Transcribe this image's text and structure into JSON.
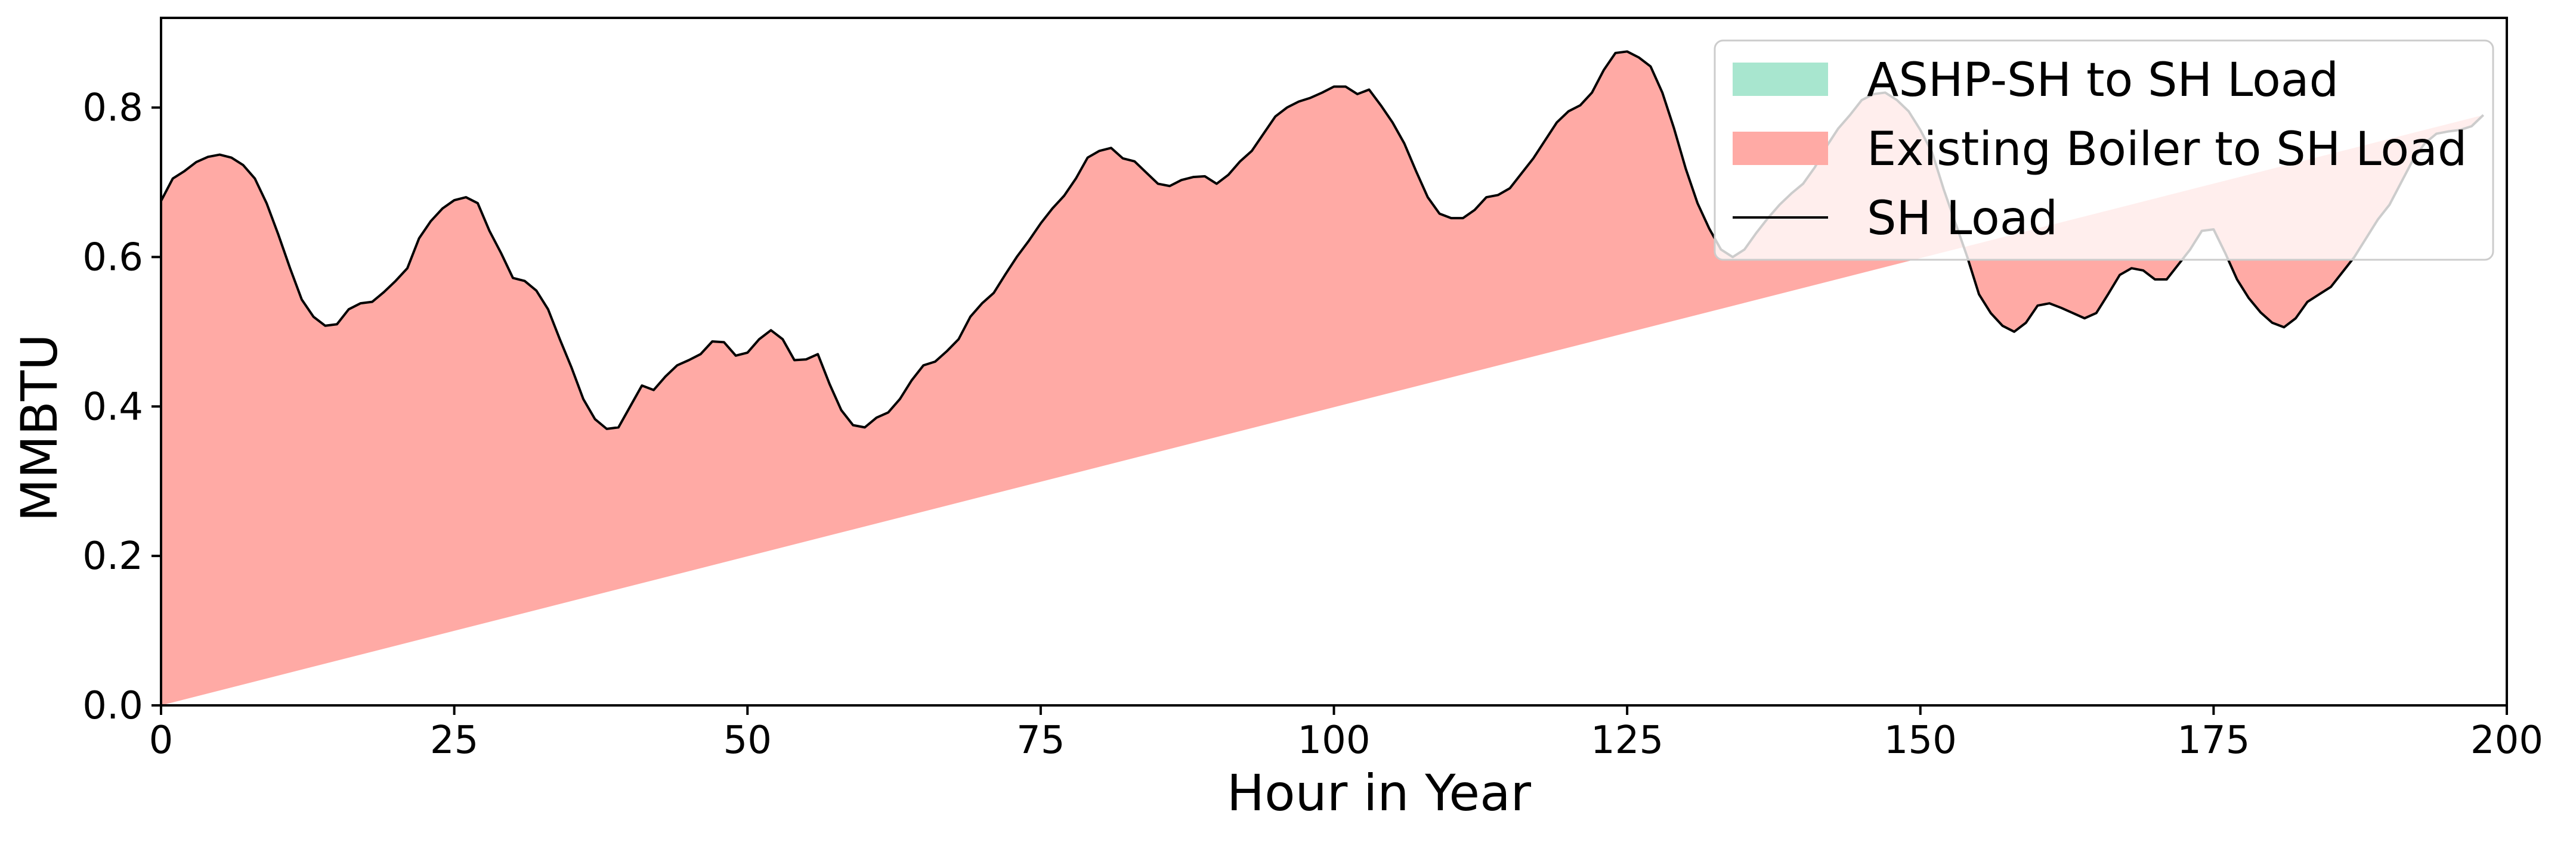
{
  "chart_data": {
    "type": "area",
    "title": "",
    "xlabel": "Hour in Year",
    "ylabel": "MMBTU",
    "xlim": [
      0,
      200
    ],
    "ylim": [
      0,
      0.92
    ],
    "xticks": [
      0,
      25,
      50,
      75,
      100,
      125,
      150,
      175,
      200
    ],
    "xtick_labels": [
      "0",
      "25",
      "50",
      "75",
      "100",
      "125",
      "150",
      "175",
      "200"
    ],
    "yticks": [
      0.0,
      0.2,
      0.4,
      0.6,
      0.8
    ],
    "ytick_labels": [
      "0.0",
      "0.2",
      "0.4",
      "0.6",
      "0.8"
    ],
    "grid": false,
    "legend_position": "top-right",
    "series": [
      {
        "name": "ASHP-SH to SH Load",
        "kind": "stacked-area",
        "color": "#a8e6cf",
        "values": "zeros"
      },
      {
        "name": "Existing Boiler to SH Load",
        "kind": "stacked-area",
        "color": "#ffaaa5",
        "values": "same-as-SH-Load"
      },
      {
        "name": "SH Load",
        "kind": "line",
        "color": "#000000"
      }
    ],
    "x": [
      0,
      1,
      2,
      3,
      4,
      5,
      6,
      7,
      8,
      9,
      10,
      11,
      12,
      13,
      14,
      15,
      16,
      17,
      18,
      19,
      20,
      21,
      22,
      23,
      24,
      25,
      26,
      27,
      28,
      29,
      30,
      31,
      32,
      33,
      34,
      35,
      36,
      37,
      38,
      39,
      40,
      41,
      42,
      43,
      44,
      45,
      46,
      47,
      48,
      49,
      50,
      51,
      52,
      53,
      54,
      55,
      56,
      57,
      58,
      59,
      60,
      61,
      62,
      63,
      64,
      65,
      66,
      67,
      68,
      69,
      70,
      71,
      72,
      73,
      74,
      75,
      76,
      77,
      78,
      79,
      80,
      81,
      82,
      83,
      84,
      85,
      86,
      87,
      88,
      89,
      90,
      91,
      92,
      93,
      94,
      95,
      96,
      97,
      98,
      99,
      100,
      101,
      102,
      103,
      104,
      105,
      106,
      107,
      108,
      109,
      110,
      111,
      112,
      113,
      114,
      115,
      116,
      117,
      118,
      119,
      120,
      121,
      122,
      123,
      124,
      125,
      126,
      127,
      128,
      129,
      130,
      131,
      132,
      133,
      134,
      135,
      136,
      137,
      138,
      139,
      140,
      141,
      142,
      143,
      144,
      145,
      146,
      147,
      148,
      149,
      150,
      151,
      152,
      153,
      154,
      155,
      156,
      157,
      158,
      159,
      160,
      161,
      162,
      163,
      164,
      165,
      166,
      167,
      168,
      169,
      170,
      171,
      172,
      173,
      174,
      175,
      176,
      177,
      178,
      179,
      180,
      181,
      182,
      183,
      184,
      185,
      186,
      187,
      188,
      189,
      190,
      191,
      192,
      193,
      194,
      195,
      196,
      197,
      198,
      199
    ],
    "sh_load": [
      0.675,
      0.705,
      0.715,
      0.727,
      0.734,
      0.737,
      0.733,
      0.723,
      0.705,
      0.672,
      0.63,
      0.585,
      0.543,
      0.52,
      0.508,
      0.51,
      0.53,
      0.538,
      0.54,
      0.553,
      0.568,
      0.585,
      0.625,
      0.648,
      0.665,
      0.676,
      0.68,
      0.672,
      0.635,
      0.605,
      0.572,
      0.568,
      0.555,
      0.53,
      0.49,
      0.452,
      0.41,
      0.383,
      0.37,
      0.372,
      0.4,
      0.428,
      0.422,
      0.44,
      0.455,
      0.462,
      0.47,
      0.487,
      0.486,
      0.468,
      0.472,
      0.49,
      0.502,
      0.49,
      0.462,
      0.463,
      0.47,
      0.43,
      0.395,
      0.375,
      0.372,
      0.385,
      0.392,
      0.41,
      0.435,
      0.455,
      0.46,
      0.474,
      0.49,
      0.52,
      0.538,
      0.552,
      0.577,
      0.601,
      0.622,
      0.645,
      0.665,
      0.682,
      0.705,
      0.733,
      0.742,
      0.746,
      0.732,
      0.728,
      0.713,
      0.698,
      0.695,
      0.703,
      0.707,
      0.708,
      0.698,
      0.71,
      0.728,
      0.742,
      0.765,
      0.788,
      0.8,
      0.808,
      0.813,
      0.82,
      0.828,
      0.828,
      0.818,
      0.824,
      0.803,
      0.78,
      0.752,
      0.715,
      0.68,
      0.658,
      0.652,
      0.652,
      0.663,
      0.68,
      0.683,
      0.692,
      0.712,
      0.732,
      0.756,
      0.78,
      0.795,
      0.803,
      0.82,
      0.85,
      0.873,
      0.875,
      0.867,
      0.855,
      0.82,
      0.772,
      0.718,
      0.672,
      0.638,
      0.61,
      0.6,
      0.61,
      0.632,
      0.652,
      0.67,
      0.685,
      0.698,
      0.72,
      0.748,
      0.772,
      0.79,
      0.81,
      0.818,
      0.82,
      0.81,
      0.795,
      0.77,
      0.74,
      0.69,
      0.645,
      0.6,
      0.55,
      0.525,
      0.508,
      0.5,
      0.512,
      0.535,
      0.538,
      0.532,
      0.525,
      0.518,
      0.525,
      0.55,
      0.576,
      0.585,
      0.582,
      0.57,
      0.57,
      0.59,
      0.61,
      0.635,
      0.637,
      0.605,
      0.57,
      0.545,
      0.526,
      0.512,
      0.506,
      0.518,
      0.54,
      0.55,
      0.56,
      0.58,
      0.6,
      0.625,
      0.65,
      0.67,
      0.7,
      0.73,
      0.752,
      0.765,
      0.768,
      0.77,
      0.775,
      0.79
    ]
  }
}
